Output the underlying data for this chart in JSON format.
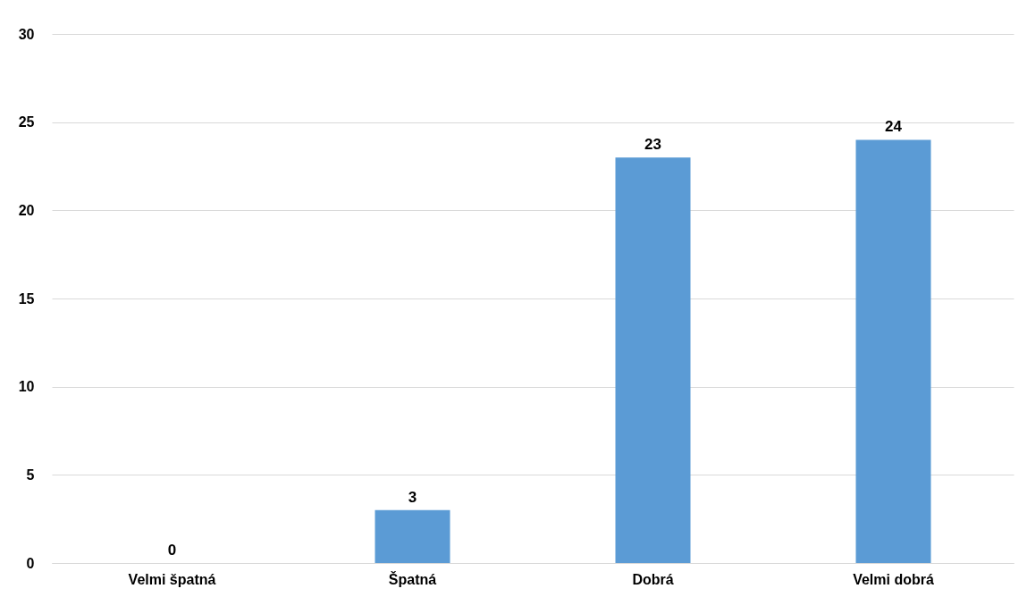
{
  "chart_data": {
    "type": "bar",
    "categories": [
      "Velmi špatná",
      "Špatná",
      "Dobrá",
      "Velmi dobrá"
    ],
    "values": [
      0,
      3,
      23,
      24
    ],
    "color": "#5b9bd5",
    "ylim": [
      0,
      30
    ],
    "yticks": [
      0,
      5,
      10,
      15,
      20,
      25,
      30
    ],
    "grid": "y",
    "data_labels": true
  }
}
